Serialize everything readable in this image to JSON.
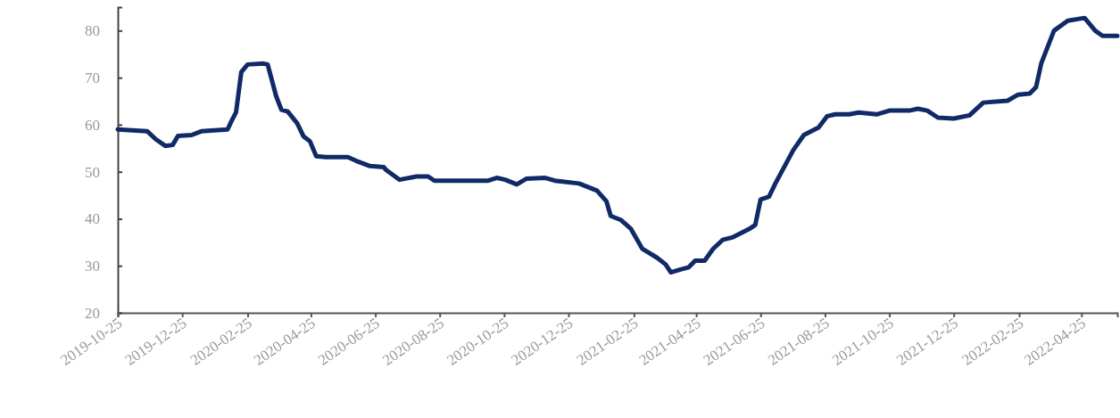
{
  "chart_data": {
    "type": "line",
    "xlim": [
      "2019-10-25",
      "2022-05-29"
    ],
    "ylim": [
      20,
      85
    ],
    "xticks": [
      "2019-10-25",
      "2019-12-25",
      "2020-02-25",
      "2020-04-25",
      "2020-06-25",
      "2020-08-25",
      "2020-10-25",
      "2020-12-25",
      "2021-02-25",
      "2021-04-25",
      "2021-06-25",
      "2021-08-25",
      "2021-10-25",
      "2021-12-25",
      "2022-02-25",
      "2022-04-25"
    ],
    "yticks": [
      20,
      30,
      40,
      50,
      60,
      70,
      80
    ],
    "grid": false,
    "line_style": "solid",
    "marker": "none",
    "series": [
      {
        "color": "#0f2a66",
        "x": [
          "2019-10-25",
          "2019-11-22",
          "2019-11-30",
          "2019-12-09",
          "2019-12-16",
          "2019-12-21",
          "2020-01-03",
          "2020-01-12",
          "2020-02-06",
          "2020-02-10",
          "2020-02-14",
          "2020-02-19",
          "2020-02-25",
          "2020-03-11",
          "2020-03-15",
          "2020-03-23",
          "2020-03-28",
          "2020-04-03",
          "2020-04-12",
          "2020-04-18",
          "2020-04-24",
          "2020-04-30",
          "2020-05-09",
          "2020-05-30",
          "2020-06-07",
          "2020-06-20",
          "2020-07-03",
          "2020-07-05",
          "2020-07-18",
          "2020-08-03",
          "2020-08-14",
          "2020-08-20",
          "2020-10-10",
          "2020-10-18",
          "2020-10-26",
          "2020-11-06",
          "2020-11-15",
          "2020-12-03",
          "2020-12-12",
          "2021-01-04",
          "2021-01-21",
          "2021-01-30",
          "2021-02-03",
          "2021-02-13",
          "2021-02-22",
          "2021-03-05",
          "2021-03-19",
          "2021-03-27",
          "2021-04-01",
          "2021-04-10",
          "2021-04-18",
          "2021-04-24",
          "2021-05-03",
          "2021-05-11",
          "2021-05-20",
          "2021-05-30",
          "2021-06-14",
          "2021-06-20",
          "2021-06-25",
          "2021-07-03",
          "2021-07-09",
          "2021-07-26",
          "2021-08-05",
          "2021-08-19",
          "2021-08-27",
          "2021-09-04",
          "2021-09-17",
          "2021-09-26",
          "2021-10-13",
          "2021-10-25",
          "2021-11-13",
          "2021-11-21",
          "2021-11-30",
          "2021-12-10",
          "2021-12-25",
          "2022-01-09",
          "2022-01-22",
          "2022-02-14",
          "2022-02-24",
          "2022-03-07",
          "2022-03-13",
          "2022-03-18",
          "2022-03-30",
          "2022-04-12",
          "2022-04-28",
          "2022-05-08",
          "2022-05-15",
          "2022-05-29"
        ],
        "values": [
          59.0,
          58.6,
          56.9,
          55.5,
          55.7,
          57.6,
          57.8,
          58.6,
          59.0,
          60.9,
          62.6,
          71.2,
          72.8,
          73.0,
          72.8,
          66.1,
          63.2,
          62.8,
          60.3,
          57.5,
          56.5,
          53.3,
          53.1,
          53.1,
          52.3,
          51.2,
          51.0,
          50.4,
          48.3,
          49.0,
          49.0,
          48.1,
          48.1,
          48.7,
          48.3,
          47.3,
          48.5,
          48.7,
          48.1,
          47.5,
          46.0,
          43.7,
          40.6,
          39.7,
          37.9,
          33.6,
          31.7,
          30.3,
          28.6,
          29.2,
          29.7,
          31.1,
          31.1,
          33.6,
          35.5,
          36.1,
          37.8,
          38.7,
          44.1,
          44.7,
          47.5,
          54.6,
          57.8,
          59.4,
          61.8,
          62.2,
          62.2,
          62.6,
          62.2,
          63.0,
          63.0,
          63.4,
          63.0,
          61.5,
          61.3,
          62.0,
          64.7,
          65.1,
          66.4,
          66.6,
          68.0,
          73.1,
          80.0,
          82.1,
          82.7,
          80.0,
          78.9,
          78.9
        ]
      }
    ]
  }
}
